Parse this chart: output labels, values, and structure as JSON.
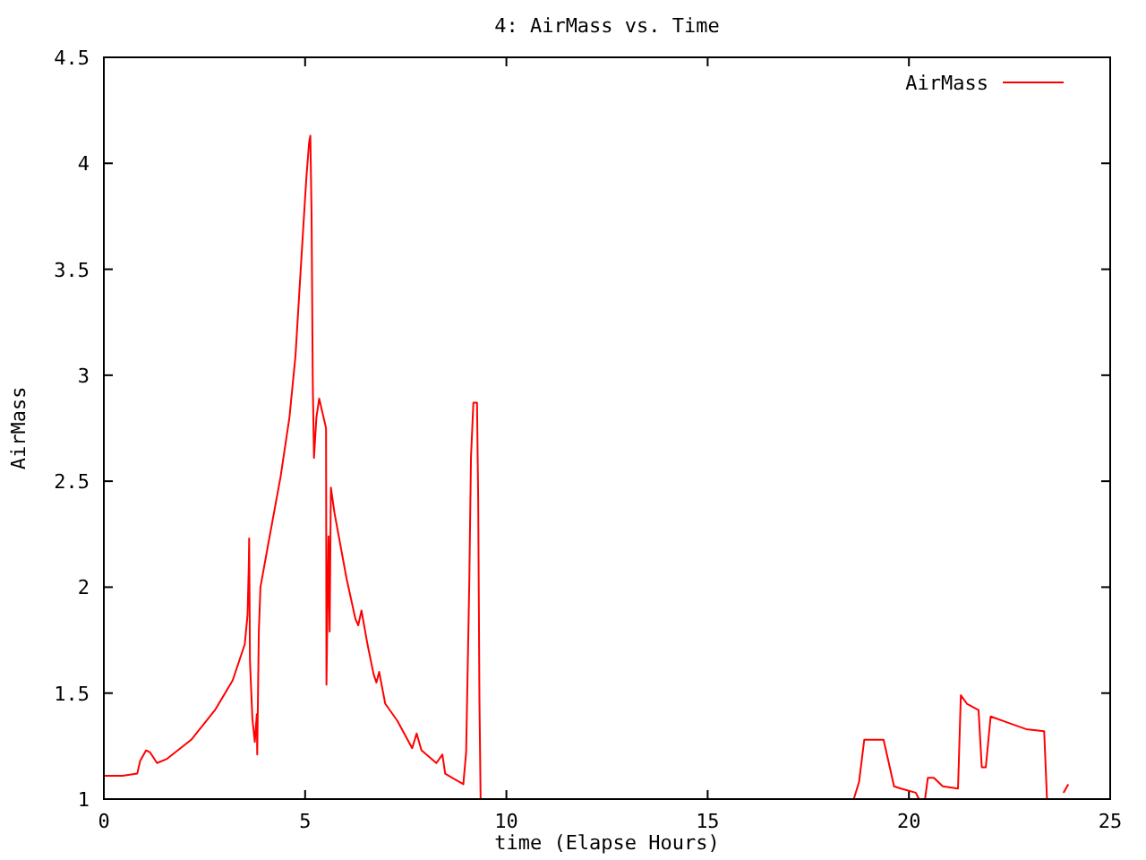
{
  "chart_data": {
    "type": "line",
    "title": "4: AirMass vs. Time",
    "xlabel": "time (Elapse Hours)",
    "ylabel": "AirMass",
    "xlim": [
      0,
      25
    ],
    "ylim": [
      1,
      4.5
    ],
    "xticks": [
      0,
      5,
      10,
      15,
      20,
      25
    ],
    "yticks": [
      1,
      1.5,
      2,
      2.5,
      3,
      3.5,
      4,
      4.5
    ],
    "grid": false,
    "legend": "top right",
    "marker": "none",
    "line_style": "solid",
    "series": [
      {
        "name": "AirMass",
        "color": "#ff0000",
        "x": [
          0,
          0.46,
          0.83,
          0.9,
          1.05,
          1.15,
          1.32,
          1.57,
          2.17,
          2.76,
          3.2,
          3.5,
          3.57,
          3.6,
          3.61,
          3.63,
          3.69,
          3.75,
          3.8,
          3.81,
          3.85,
          3.89,
          4.09,
          4.39,
          4.61,
          4.76,
          4.91,
          5.03,
          5.1,
          5.13,
          5.16,
          5.19,
          5.22,
          5.28,
          5.35,
          5.46,
          5.52,
          5.53,
          5.58,
          5.61,
          5.64,
          5.73,
          6.03,
          6.25,
          6.32,
          6.4,
          6.55,
          6.7,
          6.77,
          6.84,
          6.99,
          7.29,
          7.66,
          7.77,
          7.89,
          8.26,
          8.41,
          8.48,
          8.93,
          9.0,
          9.08,
          9.12,
          9.18,
          9.27,
          9.3,
          9.33,
          9.36,
          14,
          18.63,
          18.76,
          18.89,
          19.37,
          19.49,
          19.63,
          19.8,
          20.17,
          20.25,
          20.4,
          20.47,
          20.62,
          20.84,
          21.22,
          21.29,
          21.44,
          21.73,
          21.81,
          21.91,
          22.03,
          22.47,
          22.91,
          23.36,
          23.43,
          23.6,
          23.84,
          23.96
        ],
        "values": [
          1.11,
          1.11,
          1.12,
          1.18,
          1.23,
          1.22,
          1.17,
          1.19,
          1.28,
          1.42,
          1.56,
          1.73,
          1.87,
          2.1,
          2.23,
          1.65,
          1.38,
          1.27,
          1.4,
          1.21,
          1.79,
          2.0,
          2.21,
          2.52,
          2.8,
          3.09,
          3.56,
          3.93,
          4.1,
          4.13,
          3.76,
          2.97,
          2.61,
          2.8,
          2.89,
          2.8,
          2.75,
          1.54,
          2.24,
          1.79,
          2.47,
          2.35,
          2.04,
          1.85,
          1.82,
          1.89,
          1.73,
          1.59,
          1.55,
          1.6,
          1.45,
          1.37,
          1.24,
          1.31,
          1.23,
          1.17,
          1.21,
          1.12,
          1.07,
          1.22,
          2.04,
          2.61,
          2.87,
          2.87,
          2.41,
          1.48,
          1,
          null,
          1,
          1.08,
          1.28,
          1.28,
          1.18,
          1.06,
          1.05,
          1.03,
          1,
          1,
          1.1,
          1.1,
          1.06,
          1.05,
          1.49,
          1.45,
          1.42,
          1.15,
          1.15,
          1.39,
          1.36,
          1.33,
          1.32,
          1,
          null,
          1.03,
          1.07
        ]
      }
    ]
  }
}
